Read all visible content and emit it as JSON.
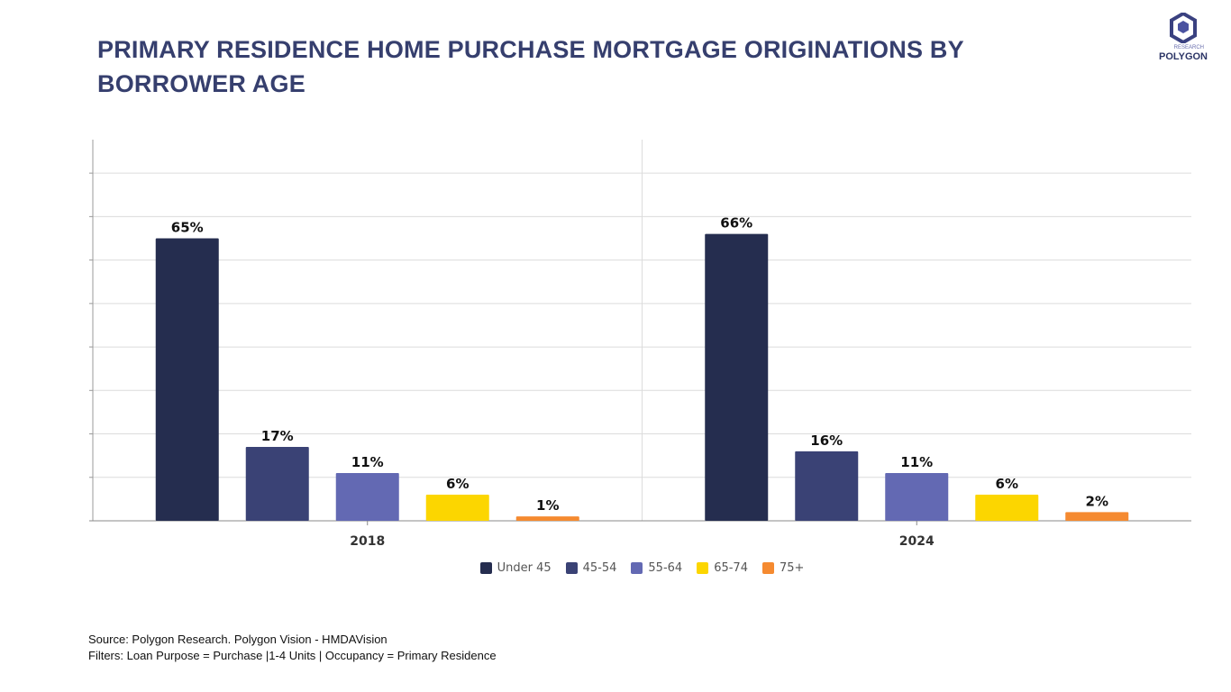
{
  "title": "PRIMARY RESIDENCE HOME PURCHASE MORTGAGE ORIGINATIONS BY BORROWER AGE",
  "logo": {
    "text": "POLYGON",
    "subtext": "RESEARCH"
  },
  "chart_data": {
    "type": "bar",
    "title": "PRIMARY RESIDENCE HOME PURCHASE MORTGAGE ORIGINATIONS BY BORROWER AGE",
    "categories": [
      "2018",
      "2024"
    ],
    "series": [
      {
        "name": "Under 45",
        "color": "#252d4f",
        "values": [
          65,
          66
        ]
      },
      {
        "name": "45-54",
        "color": "#3a4275",
        "values": [
          17,
          16
        ]
      },
      {
        "name": "55-64",
        "color": "#6369b3",
        "values": [
          11,
          11
        ]
      },
      {
        "name": "65-74",
        "color": "#fcd600",
        "values": [
          6,
          6
        ]
      },
      {
        "name": "75+",
        "color": "#f58a30",
        "values": [
          1,
          2
        ]
      }
    ],
    "value_suffix": "%",
    "ylim": [
      0,
      87.7
    ],
    "grid": true,
    "grid_step": 10,
    "legend_placement": "bottom",
    "xlabel": "",
    "ylabel": ""
  },
  "footer": {
    "source": "Source: Polygon Research. Polygon Vision - HMDAVision",
    "filters": "Filters: Loan Purpose = Purchase |1-4 Units | Occupancy = Primary Residence"
  }
}
